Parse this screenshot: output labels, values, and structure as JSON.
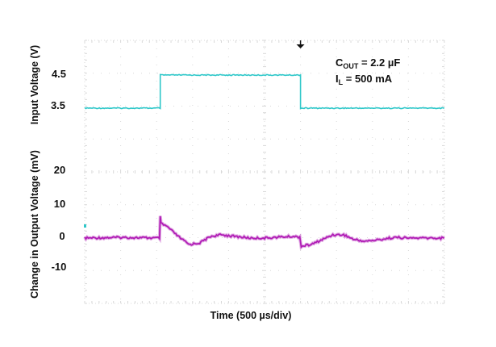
{
  "chart_data": {
    "type": "line",
    "title": "",
    "xlabel": "Time (500 µs/div)",
    "x_divisions": 10,
    "x_unit": "µs",
    "x_per_div": 500,
    "xlim": [
      0,
      5000
    ],
    "grid": true,
    "legend": null,
    "annotations": [
      {
        "main": "C",
        "sub": "OUT",
        "rest": " = 2.2 µF"
      },
      {
        "main": "I",
        "sub": "L",
        "rest": " = 500 mA"
      }
    ],
    "trigger_marker": {
      "x_us": 3000,
      "symbol": "down-arrow"
    },
    "panels": [
      {
        "name": "input",
        "ylabel": "Input Voltage (V)",
        "yticks": [
          {
            "label": "4.5",
            "value": 4.5
          },
          {
            "label": "3.5",
            "value": 3.5
          }
        ],
        "color": "#2ec7c9",
        "series": [
          {
            "name": "Input Voltage",
            "unit": "V",
            "x_us": [
              0,
              1050,
              1050,
              3000,
              3000,
              5000
            ],
            "y": [
              3.5,
              3.5,
              4.5,
              4.5,
              3.5,
              3.5
            ]
          }
        ]
      },
      {
        "name": "output",
        "ylabel": "Change in Output Voltage (mV)",
        "yticks": [
          {
            "label": "20",
            "value": 20
          },
          {
            "label": "10",
            "value": 10
          },
          {
            "label": "0",
            "value": 0
          },
          {
            "label": "-10",
            "value": -10
          }
        ],
        "color": "#b01cb5",
        "series": [
          {
            "name": "Change in Output Voltage",
            "unit": "mV",
            "x_us": [
              0,
              500,
              1040,
              1050,
              1060,
              1150,
              1300,
              1450,
              1600,
              1750,
              1900,
              2100,
              2300,
              2500,
              2700,
              2900,
              2990,
              3010,
              3150,
              3300,
              3450,
              3600,
              3750,
              3900,
              4100,
              4300,
              4500,
              4700,
              5000
            ],
            "y": [
              -0.5,
              -0.3,
              -0.5,
              6,
              4,
              3,
              0,
              -2.5,
              -2,
              0,
              0.5,
              0,
              -0.5,
              -0.5,
              -0.2,
              0,
              -0.2,
              -3,
              -2.5,
              -1,
              0.5,
              0.5,
              -1,
              -1.5,
              -1,
              -0.3,
              -0.5,
              -0.5,
              -0.5
            ]
          }
        ]
      }
    ]
  }
}
